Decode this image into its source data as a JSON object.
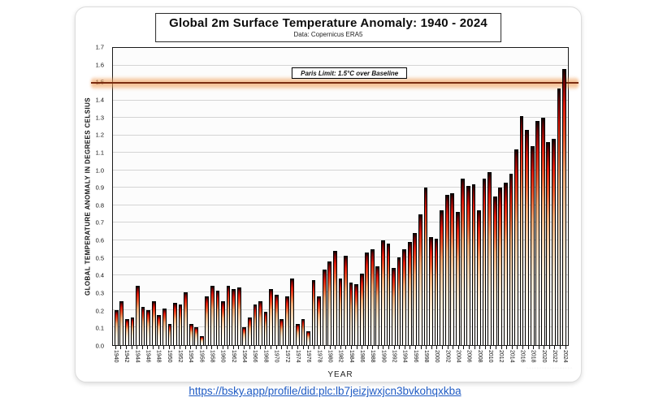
{
  "page": {
    "link_text": "https://bsky.app/profile/did:plc:lb7jeizjwxjcn3bvkohqxkba"
  },
  "chart": {
    "title": "Global 2m Surface Temperature Anomaly: 1940 - 2024",
    "subtitle": "Data: Copernicus ERA5",
    "xlabel": "YEAR",
    "ylabel": "GLOBAL TEMPERATURE ANOMALY IN DEGREES CELSIUS",
    "paris_label": "Paris Limit: 1.5°C over Baseline",
    "watermark": "··················"
  },
  "colors": {
    "bar_top": "#120000",
    "bar_red": "#dd1a0a",
    "bar_mid": "#f2cba4",
    "bar_bottom": "#fffdf8",
    "grid": "#d4d4d4",
    "paris_line": "#7a2c10",
    "paris_glow": "#f0a05a",
    "link_blue": "#1f5bc4"
  },
  "chart_data": {
    "type": "bar",
    "title": "Global 2m Surface Temperature Anomaly: 1940 - 2024",
    "subtitle": "Data: Copernicus ERA5",
    "xlabel": "YEAR",
    "ylabel": "GLOBAL TEMPERATURE ANOMALY IN DEGREES CELSIUS",
    "ylim": [
      0,
      1.7
    ],
    "ytick_step": 0.1,
    "xtick_label_every": 2,
    "grid": true,
    "legend": false,
    "reference_line": {
      "value": 1.5,
      "label": "Paris Limit: 1.5°C over Baseline"
    },
    "categories": [
      "1940",
      "1941",
      "1942",
      "1943",
      "1944",
      "1945",
      "1946",
      "1947",
      "1948",
      "1949",
      "1950",
      "1951",
      "1952",
      "1953",
      "1954",
      "1955",
      "1956",
      "1957",
      "1958",
      "1959",
      "1960",
      "1961",
      "1962",
      "1963",
      "1964",
      "1965",
      "1966",
      "1967",
      "1968",
      "1969",
      "1970",
      "1971",
      "1972",
      "1973",
      "1974",
      "1975",
      "1976",
      "1977",
      "1978",
      "1979",
      "1980",
      "1981",
      "1982",
      "1983",
      "1984",
      "1985",
      "1986",
      "1987",
      "1988",
      "1989",
      "1990",
      "1991",
      "1992",
      "1993",
      "1994",
      "1995",
      "1996",
      "1997",
      "1998",
      "1999",
      "2000",
      "2001",
      "2002",
      "2003",
      "2004",
      "2005",
      "2006",
      "2007",
      "2008",
      "2009",
      "2010",
      "2011",
      "2012",
      "2013",
      "2014",
      "2015",
      "2016",
      "2017",
      "2018",
      "2019",
      "2020",
      "2021",
      "2022",
      "2023",
      "2024"
    ],
    "values": [
      0.2,
      0.25,
      0.15,
      0.16,
      0.34,
      0.22,
      0.2,
      0.25,
      0.17,
      0.21,
      0.12,
      0.24,
      0.23,
      0.3,
      0.12,
      0.1,
      0.05,
      0.28,
      0.34,
      0.31,
      0.25,
      0.34,
      0.32,
      0.33,
      0.1,
      0.16,
      0.23,
      0.25,
      0.19,
      0.32,
      0.29,
      0.15,
      0.28,
      0.38,
      0.12,
      0.15,
      0.08,
      0.37,
      0.28,
      0.43,
      0.48,
      0.54,
      0.38,
      0.51,
      0.36,
      0.35,
      0.41,
      0.53,
      0.55,
      0.45,
      0.6,
      0.58,
      0.44,
      0.5,
      0.55,
      0.59,
      0.64,
      0.75,
      0.9,
      0.62,
      0.61,
      0.77,
      0.86,
      0.87,
      0.76,
      0.95,
      0.91,
      0.92,
      0.77,
      0.95,
      0.99,
      0.85,
      0.9,
      0.93,
      0.98,
      1.12,
      1.31,
      1.23,
      1.14,
      1.28,
      1.3,
      1.16,
      1.18,
      1.47,
      1.58
    ]
  }
}
